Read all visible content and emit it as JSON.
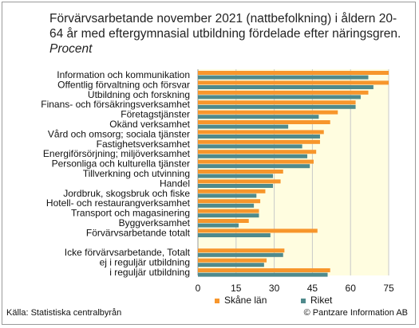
{
  "title_main": "Förvärvsarbetande november 2021 (nattbefolkning) i åldern 20-64 år med eftergymnasial utbildning fördelade efter näringsgren.",
  "title_unit": "Procent",
  "source": "Källa: Statistiska centralbyrån",
  "credit": "© Pantzare Information AB",
  "colors": {
    "skane": "#f7962c",
    "riket": "#4f8a8c",
    "plot_bg": "#fffde0",
    "grid": "#c8c8c8"
  },
  "chart_data": {
    "type": "bar",
    "orientation": "horizontal",
    "xlim": [
      0,
      75
    ],
    "ticks": [
      "0",
      "15",
      "30",
      "45",
      "60",
      "75"
    ],
    "categories": [
      "Information och kommunikation",
      "Offentlig förvaltning och försvar",
      "Utbildning och forskning",
      "Finans- och försäkringsverksamhet",
      "Företagstjänster",
      "Okänd verksamhet",
      "Vård och omsorg; sociala tjänster",
      "Fastighetsverksamhet",
      "Energiförsörjning; miljöverksamhet",
      "Personliga och kulturella tjänster",
      "Tillverkning och utvinning",
      "Handel",
      "Jordbruk, skogsbruk och fiske",
      "Hotell- och restaurangverksamhet",
      "Transport och magasinering",
      "Byggverksamhet",
      "Förvärvsarbetande totalt",
      "",
      "Icke förvärvsarbetande, Totalt",
      "ej i reguljär utbildning",
      "i reguljär utbildning"
    ],
    "series": [
      {
        "name": "Skåne län",
        "values": [
          75,
          75,
          67,
          62,
          55,
          52,
          49.5,
          48,
          46.5,
          45.5,
          33.5,
          32.5,
          26.5,
          24.5,
          24,
          20,
          47,
          null,
          34,
          27,
          52
        ]
      },
      {
        "name": "Riket",
        "values": [
          67,
          69,
          64,
          62,
          47.5,
          35.5,
          48,
          41,
          43,
          44,
          29.5,
          29.5,
          23,
          22,
          24,
          16,
          28.5,
          null,
          33.5,
          26,
          51
        ]
      }
    ],
    "legend_position": "bottom-center",
    "grid": true
  }
}
